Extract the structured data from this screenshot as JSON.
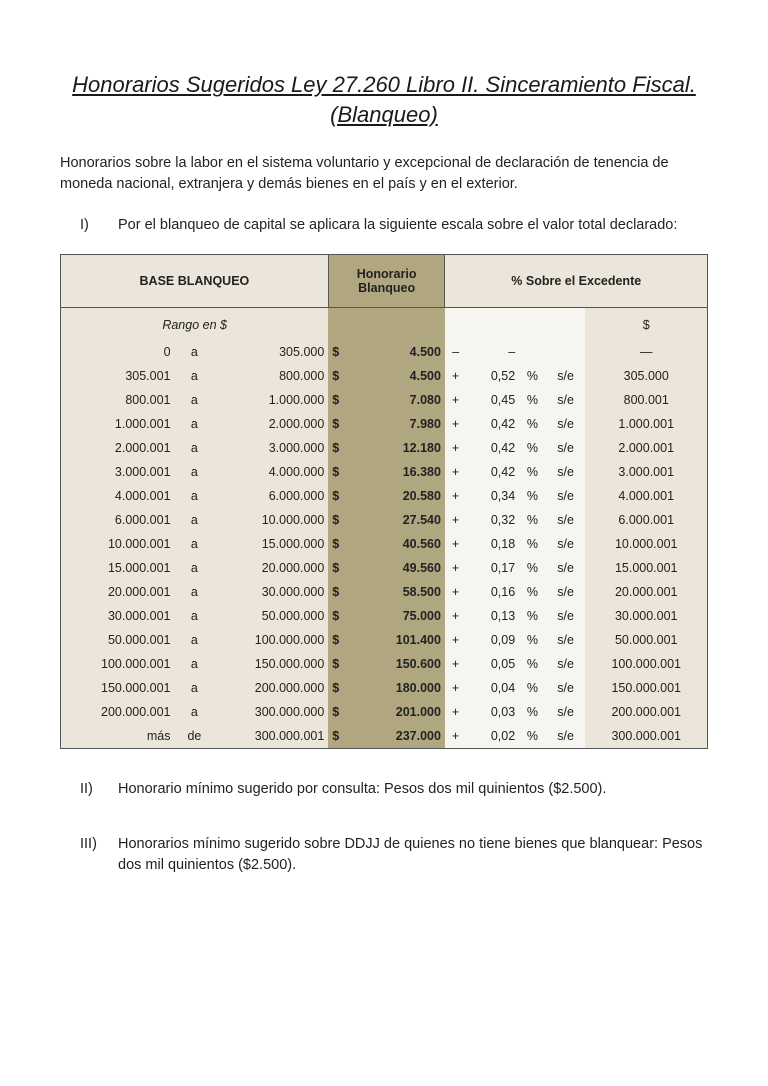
{
  "title": "Honorarios Sugeridos Ley 27.260 Libro II. Sinceramiento Fiscal. (Blanqueo)",
  "intro": "Honorarios sobre la labor en el sistema voluntario y excepcional de declaración de tenencia de moneda nacional, extranjera y demás bienes en el país y en el exterior.",
  "item_i": {
    "num": "I)",
    "text": "Por el blanqueo de capital se aplicara la siguiente escala sobre el valor total declarado:"
  },
  "item_ii": {
    "num": "II)",
    "text": "Honorario mínimo sugerido por consulta: Pesos dos mil quinientos ($2.500)."
  },
  "item_iii": {
    "num": "III)",
    "text": "Honorarios mínimo sugerido  sobre DDJJ de quienes no tiene bienes que blanquear: Pesos dos mil quinientos ($2.500)."
  },
  "table": {
    "headers": {
      "base": "BASE BLANQUEO",
      "honorario": "Honorario Blanqueo",
      "excedente": "% Sobre el Excedente"
    },
    "subhead": {
      "rango": "Rango en $",
      "dollar": "$"
    },
    "colors": {
      "base_bg": "#ece6da",
      "hon_bg": "#b0a680",
      "exc_bg": "#f6f5f2",
      "border": "#555555"
    },
    "rows": [
      {
        "from": "0",
        "mid": "a",
        "to": "305.000",
        "hon": "4.500",
        "plus": "–",
        "pct": "–",
        "pctsym": "",
        "se": "",
        "base": "—"
      },
      {
        "from": "305.001",
        "mid": "a",
        "to": "800.000",
        "hon": "4.500",
        "plus": "+",
        "pct": "0,52",
        "pctsym": "%",
        "se": "s/e",
        "base": "305.000"
      },
      {
        "from": "800.001",
        "mid": "a",
        "to": "1.000.000",
        "hon": "7.080",
        "plus": "+",
        "pct": "0,45",
        "pctsym": "%",
        "se": "s/e",
        "base": "800.001"
      },
      {
        "from": "1.000.001",
        "mid": "a",
        "to": "2.000.000",
        "hon": "7.980",
        "plus": "+",
        "pct": "0,42",
        "pctsym": "%",
        "se": "s/e",
        "base": "1.000.001"
      },
      {
        "from": "2.000.001",
        "mid": "a",
        "to": "3.000.000",
        "hon": "12.180",
        "plus": "+",
        "pct": "0,42",
        "pctsym": "%",
        "se": "s/e",
        "base": "2.000.001"
      },
      {
        "from": "3.000.001",
        "mid": "a",
        "to": "4.000.000",
        "hon": "16.380",
        "plus": "+",
        "pct": "0,42",
        "pctsym": "%",
        "se": "s/e",
        "base": "3.000.001"
      },
      {
        "from": "4.000.001",
        "mid": "a",
        "to": "6.000.000",
        "hon": "20.580",
        "plus": "+",
        "pct": "0,34",
        "pctsym": "%",
        "se": "s/e",
        "base": "4.000.001"
      },
      {
        "from": "6.000.001",
        "mid": "a",
        "to": "10.000.000",
        "hon": "27.540",
        "plus": "+",
        "pct": "0,32",
        "pctsym": "%",
        "se": "s/e",
        "base": "6.000.001"
      },
      {
        "from": "10.000.001",
        "mid": "a",
        "to": "15.000.000",
        "hon": "40.560",
        "plus": "+",
        "pct": "0,18",
        "pctsym": "%",
        "se": "s/e",
        "base": "10.000.001"
      },
      {
        "from": "15.000.001",
        "mid": "a",
        "to": "20.000.000",
        "hon": "49.560",
        "plus": "+",
        "pct": "0,17",
        "pctsym": "%",
        "se": "s/e",
        "base": "15.000.001"
      },
      {
        "from": "20.000.001",
        "mid": "a",
        "to": "30.000.000",
        "hon": "58.500",
        "plus": "+",
        "pct": "0,16",
        "pctsym": "%",
        "se": "s/e",
        "base": "20.000.001"
      },
      {
        "from": "30.000.001",
        "mid": "a",
        "to": "50.000.000",
        "hon": "75.000",
        "plus": "+",
        "pct": "0,13",
        "pctsym": "%",
        "se": "s/e",
        "base": "30.000.001"
      },
      {
        "from": "50.000.001",
        "mid": "a",
        "to": "100.000.000",
        "hon": "101.400",
        "plus": "+",
        "pct": "0,09",
        "pctsym": "%",
        "se": "s/e",
        "base": "50.000.001"
      },
      {
        "from": "100.000.001",
        "mid": "a",
        "to": "150.000.000",
        "hon": "150.600",
        "plus": "+",
        "pct": "0,05",
        "pctsym": "%",
        "se": "s/e",
        "base": "100.000.001"
      },
      {
        "from": "150.000.001",
        "mid": "a",
        "to": "200.000.000",
        "hon": "180.000",
        "plus": "+",
        "pct": "0,04",
        "pctsym": "%",
        "se": "s/e",
        "base": "150.000.001"
      },
      {
        "from": "200.000.001",
        "mid": "a",
        "to": "300.000.000",
        "hon": "201.000",
        "plus": "+",
        "pct": "0,03",
        "pctsym": "%",
        "se": "s/e",
        "base": "200.000.001"
      },
      {
        "from": "más",
        "mid": "de",
        "to": "300.000.001",
        "hon": "237.000",
        "plus": "+",
        "pct": "0,02",
        "pctsym": "%",
        "se": "s/e",
        "base": "300.000.001"
      }
    ]
  }
}
